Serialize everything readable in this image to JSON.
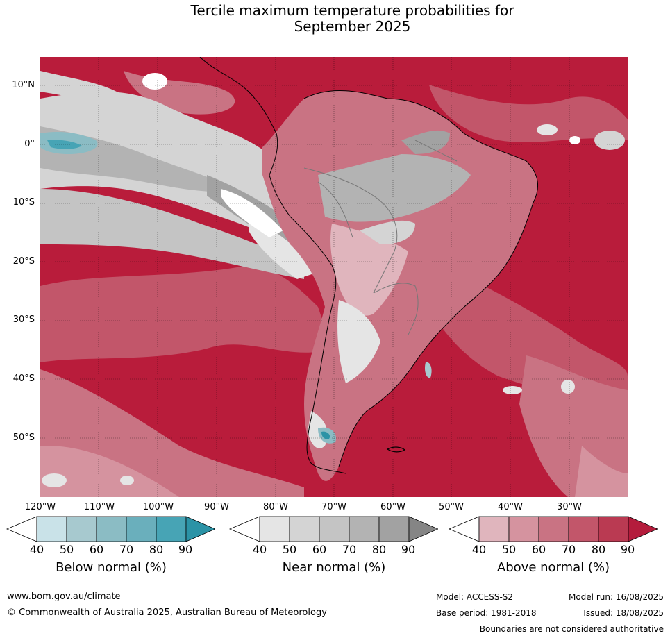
{
  "title": {
    "line1": "Tercile maximum temperature probabilities for",
    "line2": "September 2025"
  },
  "map": {
    "lat_labels": [
      "10°N",
      "0°",
      "10°S",
      "20°S",
      "30°S",
      "40°S",
      "50°S"
    ],
    "lon_labels": [
      "120°W",
      "110°W",
      "100°W",
      "90°W",
      "80°W",
      "70°W",
      "60°W",
      "50°W",
      "40°W",
      "30°W"
    ],
    "gridlines": true,
    "dominant_color": "#b91c3b"
  },
  "legends": {
    "below": {
      "title": "Below normal (%)",
      "ticks": [
        "40",
        "50",
        "60",
        "70",
        "80",
        "90"
      ],
      "colors": [
        "#ffffff",
        "#c9e2e8",
        "#a7c9cf",
        "#8bbcc4",
        "#6aafbc",
        "#47a4b5",
        "#2b93a6"
      ]
    },
    "near": {
      "title": "Near normal (%)",
      "ticks": [
        "40",
        "50",
        "60",
        "70",
        "80",
        "90"
      ],
      "colors": [
        "#ffffff",
        "#e5e5e5",
        "#d4d4d4",
        "#c4c4c4",
        "#b3b3b3",
        "#a2a2a2",
        "#858585"
      ]
    },
    "above": {
      "title": "Above normal (%)",
      "ticks": [
        "40",
        "50",
        "60",
        "70",
        "80",
        "90"
      ],
      "colors": [
        "#ffffff",
        "#e0b5bd",
        "#d5939f",
        "#c97383",
        "#c2566a",
        "#ba3a52",
        "#b41c3c"
      ]
    }
  },
  "footer": {
    "website": "www.bom.gov.au/climate",
    "copyright": "© Commonwealth of Australia 2025, Australian Bureau of Meteorology",
    "model": "Model: ACCESS-S2",
    "model_run": "Model run: 16/08/2025",
    "base_period": "Base period: 1981-2018",
    "issued": "Issued: 18/08/2025",
    "disclaimer": "Boundaries are not considered authoritative"
  }
}
